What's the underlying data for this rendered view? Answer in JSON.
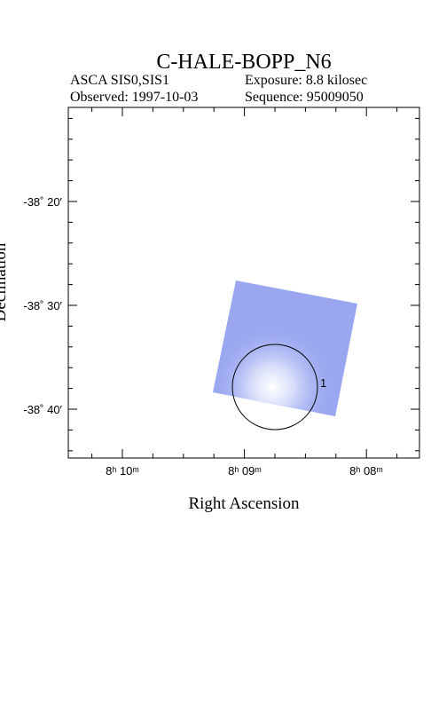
{
  "header": {
    "title": "C-HALE-BOPP_N6",
    "instrument": "ASCA SIS0,SIS1",
    "exposure": "Exposure: 8.8 kilosec",
    "observed": "Observed: 1997-10-03",
    "sequence": "Sequence: 95009050"
  },
  "axes": {
    "x_label": "Right Ascension",
    "y_label": "Declination",
    "x_tick_labels": [
      "8ʰ 10ᵐ",
      "8ʰ 09ᵐ",
      "8ʰ 08ᵐ"
    ],
    "y_tick_labels": [
      "-38˚ 20′",
      "-38˚ 30′",
      "-38˚ 40′"
    ]
  },
  "regions": [
    {
      "label": "1"
    }
  ]
}
